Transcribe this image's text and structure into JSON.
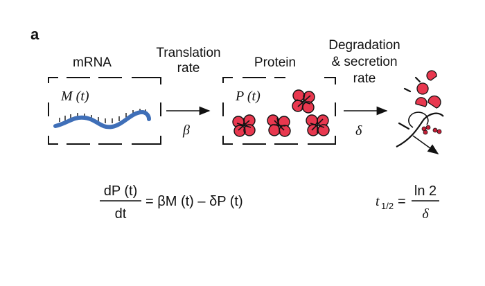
{
  "panel_label": "a",
  "stages": {
    "mrna": {
      "title": "mRNA",
      "symbol": "M (t)"
    },
    "protein": {
      "title": "Protein",
      "symbol": "P (t)"
    },
    "degradation": {
      "title_line1": "Degradation",
      "title_line2": "& secretion",
      "title_line3": "rate"
    }
  },
  "translation": {
    "line1": "Translation",
    "line2": "rate",
    "symbol": "β"
  },
  "degradation_symbol": "δ",
  "equation": {
    "lhs_num": "dP (t)",
    "lhs_den": "dt",
    "rhs": "= βM (t) – δP (t)"
  },
  "half_life": {
    "t": "t",
    "sub": "1/2",
    "eq": "=",
    "num": "ln 2",
    "den": "δ"
  },
  "colors": {
    "mrna": "#3f6fb8",
    "protein": "#e8384f",
    "protein_dark": "#c41e36",
    "ink": "#111111"
  },
  "icons": [
    "dashed-box",
    "arrow-right",
    "protein-cluster",
    "degraded-fragments"
  ]
}
